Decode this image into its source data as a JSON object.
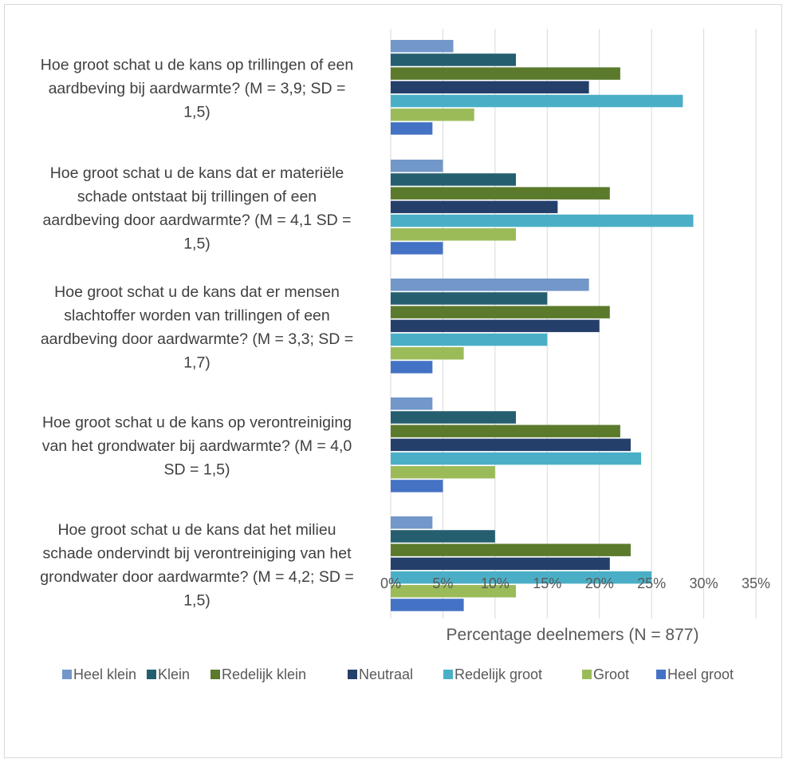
{
  "chart_data": {
    "type": "bar",
    "orientation": "horizontal",
    "title": "",
    "xlabel": "Percentage deelnemers (N = 877)",
    "ylabel": "",
    "xlim": [
      0,
      35
    ],
    "ticks": [
      "0%",
      "5%",
      "10%",
      "15%",
      "20%",
      "25%",
      "30%",
      "35%"
    ],
    "tick_values": [
      0,
      5,
      10,
      15,
      20,
      25,
      30,
      35
    ],
    "grid": true,
    "legend_position": "bottom",
    "categories": [
      [
        "Hoe groot schat u de kans op trillingen of een",
        "aardbeving bij aardwarmte? (M = 3,9; SD =",
        "1,5)"
      ],
      [
        "Hoe groot schat u de kans dat er materiële",
        "schade ontstaat bij trillingen of een",
        "aardbeving door aardwarmte? (M = 4,1 SD =",
        "1,5)"
      ],
      [
        "Hoe groot schat u de kans dat er mensen",
        "slachtoffer worden van trillingen of een",
        "aardbeving door aardwarmte? (M = 3,3; SD =",
        "1,7)"
      ],
      [
        "Hoe groot schat u de kans op verontreiniging",
        "van het grondwater bij aardwarmte? (M = 4,0",
        "SD = 1,5)"
      ],
      [
        "Hoe groot schat u de kans dat het milieu",
        "schade ondervindt bij verontreiniging van het",
        "grondwater door aardwarmte? (M = 4,2; SD =",
        "1,5)"
      ]
    ],
    "series": [
      {
        "name": "Heel klein",
        "color": "#7297c9",
        "values": [
          6,
          5,
          19,
          4,
          4
        ]
      },
      {
        "name": "Klein",
        "color": "#255e6f",
        "values": [
          12,
          12,
          15,
          12,
          10
        ]
      },
      {
        "name": "Redelijk klein",
        "color": "#5b7a2c",
        "values": [
          22,
          21,
          21,
          22,
          23
        ]
      },
      {
        "name": "Neutraal",
        "color": "#253f6b",
        "values": [
          19,
          16,
          20,
          23,
          21
        ]
      },
      {
        "name": "Redelijk groot",
        "color": "#4aafc6",
        "values": [
          28,
          29,
          15,
          24,
          25
        ]
      },
      {
        "name": "Groot",
        "color": "#9bbb59",
        "values": [
          8,
          12,
          7,
          10,
          12
        ]
      },
      {
        "name": "Heel groot",
        "color": "#4472c4",
        "values": [
          4,
          5,
          4,
          5,
          7
        ]
      }
    ]
  },
  "colors": {
    "grid": "#d9d9d9",
    "label_text": "#404040",
    "axis_text": "#595959"
  }
}
